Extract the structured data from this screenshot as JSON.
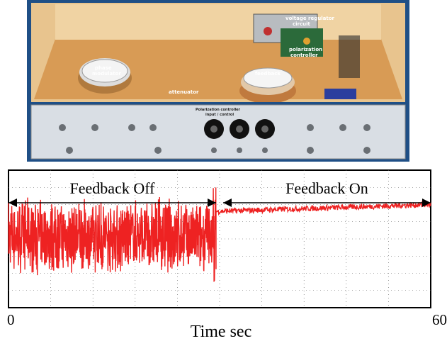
{
  "photo": {
    "labels": {
      "voltage_regulator": "voltage regulator",
      "circuit": "circuit",
      "phase_modulator_1": "phase",
      "phase_modulator_2": "modulator",
      "feedback": "feedback",
      "attenuator": "attenuator",
      "polarization_1": "polarization",
      "polarization_2": "controller",
      "panel_title_1": "Polarization controller",
      "panel_title_2": "input / control"
    }
  },
  "chart_data": {
    "type": "line",
    "xlabel": "Time sec",
    "xlim": [
      0,
      60
    ],
    "x_tick_labels": [
      "0",
      "60"
    ],
    "annotations": [
      {
        "text": "Feedback Off",
        "x_range": [
          0,
          29.5
        ]
      },
      {
        "text": "Feedback On",
        "x_range": [
          30.5,
          60
        ]
      }
    ],
    "series": [
      {
        "color": "#ee2222",
        "noisy_segment": {
          "x_start": 0,
          "x_end": 29.5,
          "mean": 0.52,
          "amplitude": 0.24
        },
        "quiet_segment": {
          "x_start": 29.5,
          "x_end": 60,
          "start_level": 0.7,
          "end_level": 0.75,
          "amplitude": 0.02
        }
      }
    ],
    "grid": true,
    "grid_style": "dotted"
  }
}
